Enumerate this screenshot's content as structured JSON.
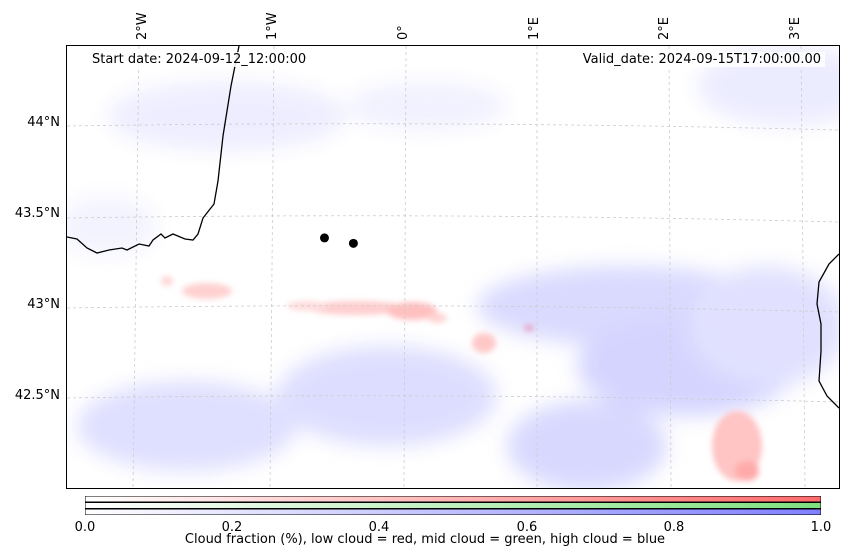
{
  "map": {
    "start_date": "Start date: 2024-09-12_12:00:00",
    "valid_date": "Valid_date: 2024-09-15T17:00:00.00",
    "lon_labels": [
      "2°W",
      "1°W",
      "0°",
      "1°E",
      "2°E",
      "3°E"
    ],
    "lat_labels": [
      "44°N",
      "43.5°N",
      "43°N",
      "42.5°N"
    ],
    "markers": [
      {
        "name": "marker-1",
        "lon": -0.62,
        "lat": 43.39
      },
      {
        "name": "marker-2",
        "lon": -0.4,
        "lat": 43.36
      }
    ],
    "colors": {
      "low_cloud": "#ff6b6b",
      "mid_cloud": "#7ee07e",
      "high_cloud": "#8080ff",
      "coastline": "#000000",
      "gridline": "#cccccc"
    }
  },
  "colorbar": {
    "ticks": [
      "0.0",
      "0.2",
      "0.4",
      "0.6",
      "0.8",
      "1.0"
    ],
    "title": "Cloud fraction (%), low cloud = red, mid cloud = green, high cloud = blue"
  }
}
